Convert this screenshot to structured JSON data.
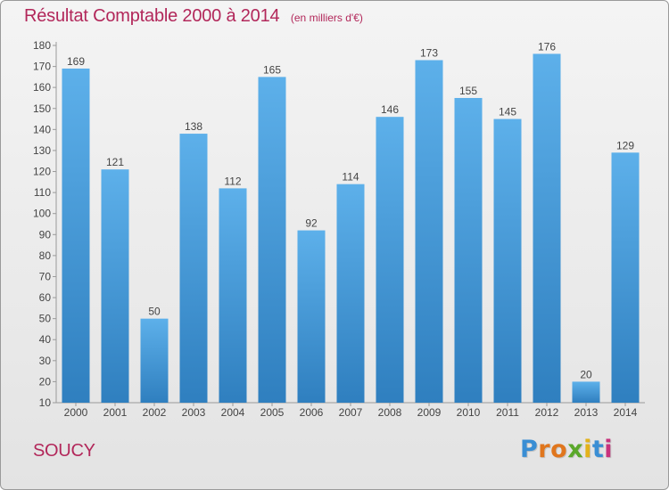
{
  "header": {
    "title": "Résultat Comptable 2000 à 2014",
    "subtitle": "(en milliers d'€)"
  },
  "footer": {
    "place": "SOUCY",
    "brand_letters": [
      "P",
      "r",
      "o",
      "x",
      "i",
      "t",
      "i"
    ]
  },
  "colors": {
    "title": "#b2275a",
    "bar_top": "#5db0ea",
    "bar_bottom": "#2f7fbf",
    "brand": [
      "#3a8ed4",
      "#e0761d",
      "#e0761d",
      "#5aa82a",
      "#e3b21a",
      "#3a8ed4",
      "#c8327d"
    ]
  },
  "chart_data": {
    "type": "bar",
    "title": "Résultat Comptable 2000 à 2014",
    "subtitle": "(en milliers d'€)",
    "categories": [
      "2000",
      "2001",
      "2002",
      "2003",
      "2004",
      "2005",
      "2006",
      "2007",
      "2008",
      "2009",
      "2010",
      "2011",
      "2012",
      "2013",
      "2014"
    ],
    "values": [
      169,
      121,
      50,
      138,
      112,
      165,
      92,
      114,
      146,
      173,
      155,
      145,
      176,
      20,
      129
    ],
    "xlabel": "",
    "ylabel": "",
    "ylim": [
      10,
      180
    ],
    "yticks": [
      10,
      20,
      30,
      40,
      50,
      60,
      70,
      80,
      90,
      100,
      110,
      120,
      130,
      140,
      150,
      160,
      170,
      180
    ],
    "grid": false,
    "legend": "none"
  }
}
